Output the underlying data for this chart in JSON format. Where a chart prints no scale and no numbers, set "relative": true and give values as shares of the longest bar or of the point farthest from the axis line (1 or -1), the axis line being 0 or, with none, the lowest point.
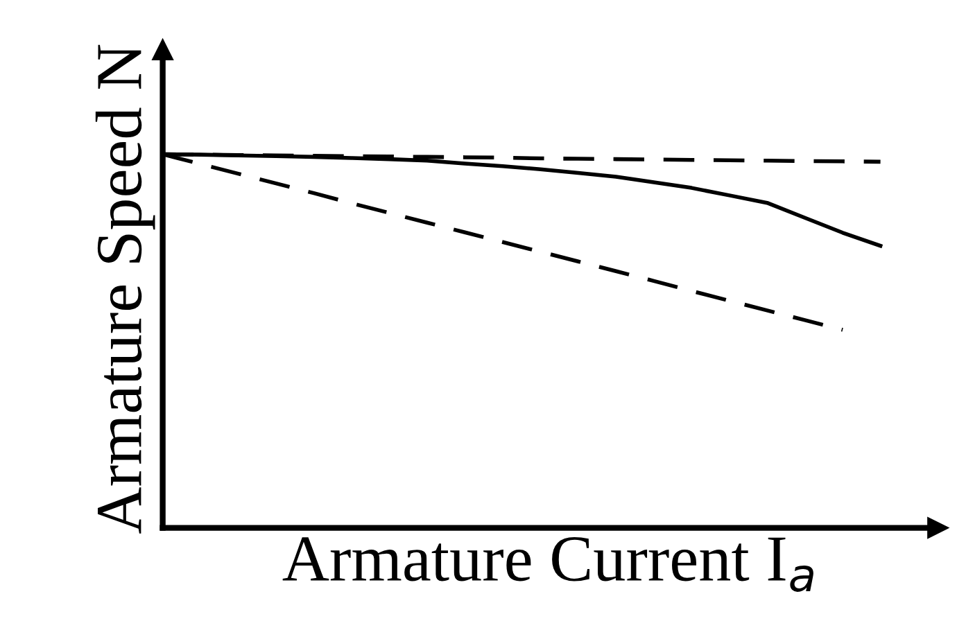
{
  "chart_data": {
    "type": "line",
    "relative": true,
    "xlabel": "Armature Current I$_{a}$",
    "ylabel": "Armature Speed N",
    "legend": false,
    "marker": "none",
    "categories": [
      null,
      null,
      null,
      null,
      null,
      null,
      null,
      null,
      null,
      null,
      null,
      null,
      null,
      null,
      null,
      null,
      null,
      null,
      null,
      null
    ],
    "series": [
      {
        "color": "#000000",
        "line_style": "dashed",
        "values": [
          1,
          0.999,
          0.998,
          0.997,
          0.996,
          0.995,
          0.994,
          0.993,
          0.992,
          0.991,
          0.989,
          0.988,
          0.987,
          0.986,
          0.985,
          0.984,
          0.983,
          0.982,
          0.981,
          0.98
        ]
      },
      {
        "color": "#000000",
        "line_style": "solid",
        "values": [
          1,
          0.999,
          0.997,
          0.995,
          0.993,
          0.99,
          0.987,
          0.983,
          0.975,
          0.968,
          0.96,
          0.95,
          0.94,
          0.925,
          0.91,
          0.89,
          0.87,
          0.83,
          0.79,
          0.755
        ]
      },
      {
        "color": "#000000",
        "line_style": "dashed",
        "values": [
          1,
          0.974,
          0.948,
          0.922,
          0.896,
          0.869,
          0.843,
          0.817,
          0.791,
          0.765,
          0.739,
          0.713,
          0.687,
          0.661,
          0.634,
          0.608,
          0.582,
          0.556,
          0.53,
          null
        ]
      }
    ]
  }
}
